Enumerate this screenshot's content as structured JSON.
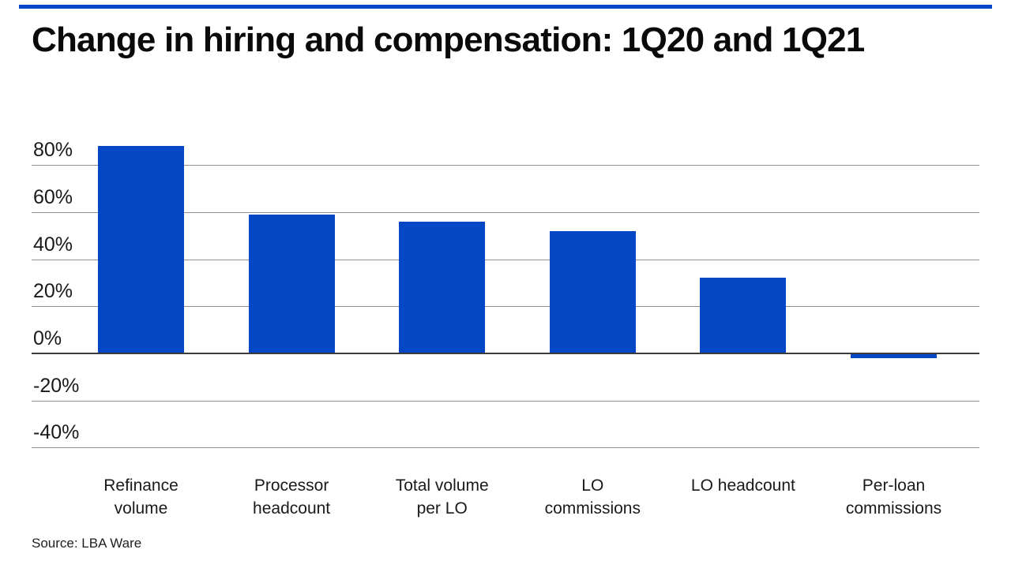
{
  "page": {
    "title": "Change in hiring and compensation: 1Q20 and 1Q21",
    "source": "Source: LBA Ware",
    "accent_color": "#0447c4"
  },
  "chart_data": {
    "type": "bar",
    "title": "Change in hiring and compensation: 1Q20 and 1Q21",
    "categories": [
      "Refinance\nvolume",
      "Processor\nheadcount",
      "Total volume\nper LO",
      "LO\ncommissions",
      "LO headcount",
      "Per-loan\ncommissions"
    ],
    "values": [
      88,
      59,
      56,
      52,
      32,
      -2
    ],
    "unit": "%",
    "yticks": [
      80,
      60,
      40,
      20,
      0,
      -20,
      -40
    ],
    "ytick_labels": [
      "80%",
      "60%",
      "40%",
      "20%",
      "0%",
      "-20%",
      "-40%"
    ],
    "ylim": [
      -54,
      96
    ],
    "grid": true,
    "legend_position": "none",
    "bar_color": "#0447c4",
    "gridline_color": "#8f8f8f",
    "zero_axis_color": "#3c3c3c",
    "source": "Source: LBA Ware"
  }
}
